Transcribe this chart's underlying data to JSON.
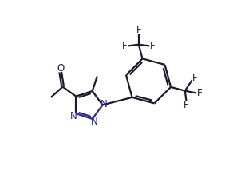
{
  "bg_color": "#ffffff",
  "bond_color": "#1a1a2e",
  "N_color": "#2a2a8c",
  "line_width": 1.6,
  "font_size": 8.5,
  "fig_width": 3.12,
  "fig_height": 2.24,
  "dpi": 100,
  "xlim": [
    -0.5,
    7.5
  ],
  "ylim": [
    -0.3,
    6.0
  ]
}
